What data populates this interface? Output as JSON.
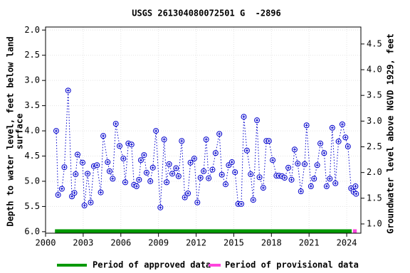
{
  "chart_data": {
    "type": "scatter",
    "title": "USGS 261304080072501 G  -2896",
    "y_label": [
      "Depth to water level, feet below land",
      "surface"
    ],
    "y2_label": "Groundwater level above NGVD 1929, feet",
    "xlim": [
      2000,
      2025.13
    ],
    "xticks": [
      2000,
      2003,
      2006,
      2009,
      2012,
      2015,
      2018,
      2021,
      2024
    ],
    "ylim": [
      1.94,
      6.03
    ],
    "inverted": true,
    "yticks": [
      {
        "value": 2.0,
        "label": "2.0"
      },
      {
        "value": 2.5,
        "label": "2.5"
      },
      {
        "value": 3.0,
        "label": "3.0"
      },
      {
        "value": 3.5,
        "label": "3.5"
      },
      {
        "value": 4.0,
        "label": "4.0"
      },
      {
        "value": 4.5,
        "label": "4.5"
      },
      {
        "value": 5.0,
        "label": "5.0"
      },
      {
        "value": 5.5,
        "label": "5.5"
      },
      {
        "value": 6.0,
        "label": "6.0"
      }
    ],
    "y2lim": [
      0.82,
      4.83
    ],
    "y2ticks": [
      {
        "value": 1.0,
        "label": "1.0"
      },
      {
        "value": 1.5,
        "label": "1.5"
      },
      {
        "value": 2.0,
        "label": "2.0"
      },
      {
        "value": 2.5,
        "label": "2.5"
      },
      {
        "value": 3.0,
        "label": "3.0"
      },
      {
        "value": 3.5,
        "label": "3.5"
      },
      {
        "value": 4.0,
        "label": "4.0"
      },
      {
        "value": 4.5,
        "label": "4.5"
      }
    ],
    "grid": true,
    "series": [
      {
        "color": "#0000cc",
        "x": [
          2000.85,
          2001.0,
          2001.3,
          2001.5,
          2001.8,
          2002.1,
          2002.3,
          2002.4,
          2002.55,
          2002.95,
          2003.1,
          2003.35,
          2003.6,
          2003.85,
          2004.1,
          2004.4,
          2004.6,
          2004.95,
          2005.1,
          2005.35,
          2005.6,
          2005.9,
          2006.2,
          2006.35,
          2006.6,
          2006.85,
          2007.05,
          2007.25,
          2007.45,
          2007.6,
          2007.85,
          2008.05,
          2008.35,
          2008.55,
          2008.8,
          2009.15,
          2009.45,
          2009.65,
          2009.85,
          2010.1,
          2010.4,
          2010.6,
          2010.85,
          2011.1,
          2011.35,
          2011.55,
          2011.85,
          2012.1,
          2012.35,
          2012.6,
          2012.8,
          2013.0,
          2013.3,
          2013.55,
          2013.85,
          2014.05,
          2014.35,
          2014.6,
          2014.85,
          2015.1,
          2015.35,
          2015.6,
          2015.8,
          2016.05,
          2016.35,
          2016.55,
          2016.85,
          2017.05,
          2017.35,
          2017.6,
          2017.8,
          2018.1,
          2018.4,
          2018.6,
          2018.85,
          2019.05,
          2019.35,
          2019.6,
          2019.85,
          2020.1,
          2020.35,
          2020.65,
          2020.8,
          2021.15,
          2021.4,
          2021.65,
          2021.9,
          2022.2,
          2022.4,
          2022.65,
          2022.85,
          2023.1,
          2023.35,
          2023.65,
          2023.9,
          2024.1,
          2024.35,
          2024.55,
          2024.7,
          2024.75
        ],
        "values": [
          4.0,
          5.27,
          5.15,
          4.72,
          3.2,
          5.3,
          5.23,
          4.86,
          4.47,
          4.63,
          5.48,
          4.85,
          5.42,
          4.7,
          4.68,
          5.22,
          4.1,
          4.62,
          4.8,
          4.95,
          3.86,
          4.3,
          4.55,
          5.02,
          4.25,
          4.27,
          5.07,
          5.1,
          4.97,
          4.58,
          4.48,
          4.83,
          5.0,
          4.73,
          4.0,
          5.52,
          4.17,
          5.02,
          4.66,
          4.85,
          4.74,
          4.9,
          4.2,
          5.32,
          5.24,
          4.63,
          4.55,
          5.42,
          4.93,
          4.8,
          4.17,
          4.94,
          4.77,
          4.44,
          4.06,
          4.87,
          5.06,
          4.68,
          4.62,
          4.82,
          5.45,
          5.45,
          3.72,
          4.39,
          4.86,
          5.37,
          3.79,
          4.92,
          5.13,
          4.2,
          4.2,
          4.58,
          4.89,
          4.89,
          4.9,
          4.93,
          4.73,
          4.97,
          4.37,
          4.65,
          5.2,
          4.66,
          3.89,
          5.1,
          4.95,
          4.68,
          4.25,
          4.44,
          5.1,
          4.95,
          3.94,
          5.04,
          4.21,
          3.87,
          4.13,
          4.31,
          5.14,
          5.21,
          5.1,
          5.25
        ]
      }
    ],
    "periods": [
      {
        "name": "Period of approved data",
        "color": "#009900",
        "start": 2000.75,
        "end": 2024.4
      },
      {
        "name": "Period of provisional data",
        "color": "#ff44dd",
        "start": 2024.5,
        "end": 2024.8
      }
    ]
  }
}
